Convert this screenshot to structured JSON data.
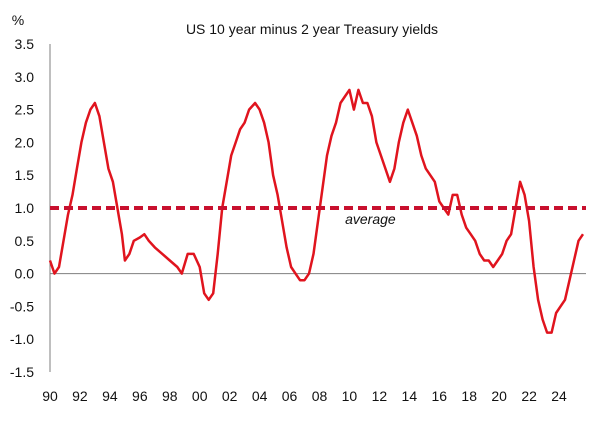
{
  "chart_data": {
    "type": "line",
    "title": "US 10 year minus 2 year Treasury yields",
    "ylabel": "%",
    "xlabel": "",
    "ylim": [
      -1.5,
      3.5
    ],
    "xlim": [
      1990,
      2025.8
    ],
    "yticks": [
      3.5,
      3.0,
      2.5,
      2.0,
      1.5,
      1.0,
      0.5,
      0.0,
      -0.5,
      -1.0,
      -1.5
    ],
    "ytick_labels": [
      "3.5",
      "3.0",
      "2.5",
      "2.0",
      "1.5",
      "1.0",
      "0.5",
      "0.0",
      "-0.5",
      "-1.0",
      "-1.5"
    ],
    "xticks": [
      1990,
      1992,
      1994,
      1996,
      1998,
      2000,
      2002,
      2004,
      2006,
      2008,
      2010,
      2012,
      2014,
      2016,
      2018,
      2020,
      2022,
      2024
    ],
    "xtick_labels": [
      "90",
      "92",
      "94",
      "96",
      "98",
      "00",
      "02",
      "04",
      "06",
      "08",
      "10",
      "12",
      "14",
      "16",
      "18",
      "20",
      "22",
      "24"
    ],
    "grid": false,
    "legend": "none",
    "series": [
      {
        "color": "#e0141e",
        "x": [
          1990.0,
          1990.3,
          1990.6,
          1990.9,
          1991.2,
          1991.5,
          1991.8,
          1992.1,
          1992.4,
          1992.7,
          1993.0,
          1993.3,
          1993.6,
          1993.9,
          1994.2,
          1994.5,
          1994.8,
          1995.0,
          1995.3,
          1995.6,
          1996.0,
          1996.3,
          1996.6,
          1997.0,
          1997.5,
          1998.0,
          1998.5,
          1998.8,
          1999.2,
          1999.6,
          2000.0,
          2000.3,
          2000.6,
          2000.9,
          2001.2,
          2001.5,
          2001.8,
          2002.1,
          2002.4,
          2002.7,
          2003.0,
          2003.3,
          2003.7,
          2004.0,
          2004.3,
          2004.6,
          2004.9,
          2005.2,
          2005.5,
          2005.8,
          2006.1,
          2006.4,
          2006.7,
          2007.0,
          2007.3,
          2007.6,
          2007.9,
          2008.2,
          2008.5,
          2008.8,
          2009.1,
          2009.4,
          2009.7,
          2010.0,
          2010.3,
          2010.6,
          2010.9,
          2011.2,
          2011.5,
          2011.8,
          2012.1,
          2012.4,
          2012.7,
          2013.0,
          2013.3,
          2013.6,
          2013.9,
          2014.2,
          2014.5,
          2014.8,
          2015.1,
          2015.4,
          2015.7,
          2016.0,
          2016.3,
          2016.6,
          2016.9,
          2017.2,
          2017.5,
          2017.8,
          2018.1,
          2018.4,
          2018.7,
          2019.0,
          2019.3,
          2019.6,
          2019.9,
          2020.2,
          2020.5,
          2020.8,
          2021.1,
          2021.4,
          2021.7,
          2022.0,
          2022.3,
          2022.6,
          2022.9,
          2023.2,
          2023.5,
          2023.8,
          2024.1,
          2024.4,
          2024.7,
          2025.0,
          2025.3,
          2025.6
        ],
        "y": [
          0.2,
          0.0,
          0.1,
          0.5,
          0.9,
          1.2,
          1.6,
          2.0,
          2.3,
          2.5,
          2.6,
          2.4,
          2.0,
          1.6,
          1.4,
          1.0,
          0.6,
          0.2,
          0.3,
          0.5,
          0.55,
          0.6,
          0.5,
          0.4,
          0.3,
          0.2,
          0.1,
          0.0,
          0.3,
          0.3,
          0.1,
          -0.3,
          -0.4,
          -0.3,
          0.3,
          1.0,
          1.4,
          1.8,
          2.0,
          2.2,
          2.3,
          2.5,
          2.6,
          2.5,
          2.3,
          2.0,
          1.5,
          1.2,
          0.8,
          0.4,
          0.1,
          0.0,
          -0.1,
          -0.1,
          0.0,
          0.3,
          0.8,
          1.3,
          1.8,
          2.1,
          2.3,
          2.6,
          2.7,
          2.8,
          2.5,
          2.8,
          2.6,
          2.6,
          2.4,
          2.0,
          1.8,
          1.6,
          1.4,
          1.6,
          2.0,
          2.3,
          2.5,
          2.3,
          2.1,
          1.8,
          1.6,
          1.5,
          1.4,
          1.1,
          1.0,
          0.9,
          1.2,
          1.2,
          0.9,
          0.7,
          0.6,
          0.5,
          0.3,
          0.2,
          0.2,
          0.1,
          0.2,
          0.3,
          0.5,
          0.6,
          1.0,
          1.4,
          1.2,
          0.8,
          0.1,
          -0.4,
          -0.7,
          -0.9,
          -0.9,
          -0.6,
          -0.5,
          -0.4,
          -0.1,
          0.2,
          0.5,
          0.6
        ]
      },
      {
        "name": "average",
        "color": "#c8102e",
        "style": "dashed",
        "x": [
          1990.0,
          2025.8
        ],
        "y": [
          1.0,
          1.0
        ]
      }
    ],
    "annotations": [
      {
        "text": "average",
        "x": 2011.4,
        "y": 0.85
      }
    ]
  }
}
